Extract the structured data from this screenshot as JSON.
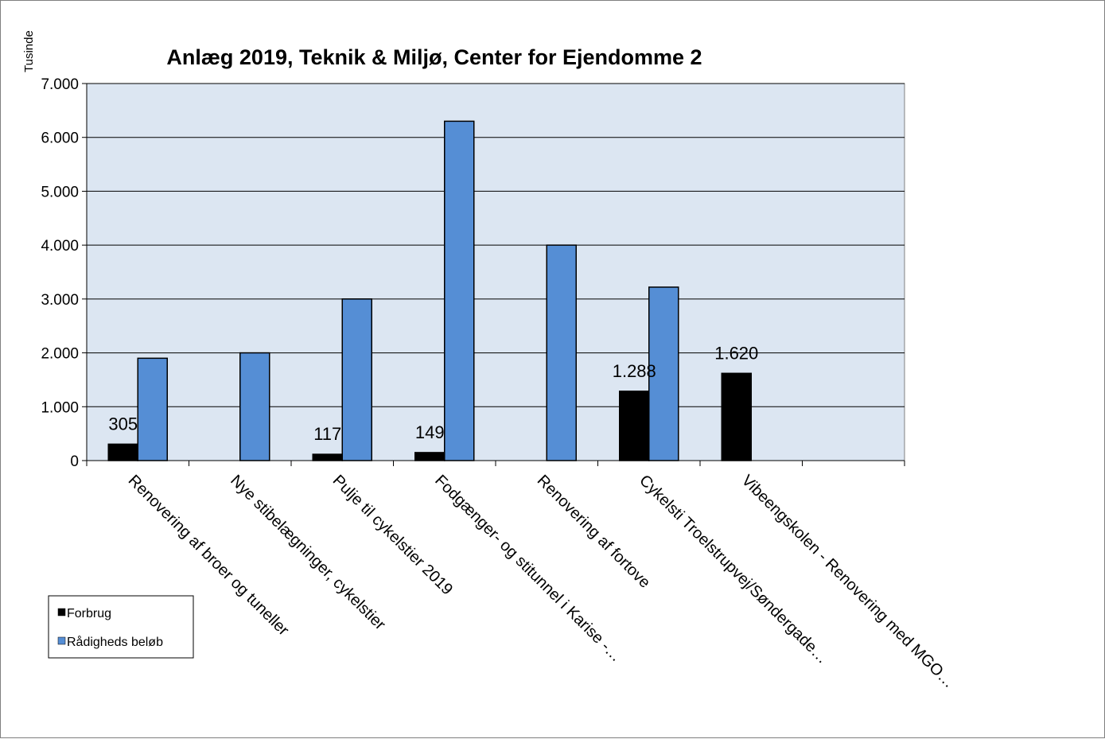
{
  "chart_data": {
    "type": "bar",
    "title": "Anlæg 2019, Teknik & Miljø, Center for Ejendomme 2",
    "ylabel": "Tusinde",
    "xlabel": "",
    "ylim": [
      0,
      7000
    ],
    "yticks": [
      0,
      1000,
      2000,
      3000,
      4000,
      5000,
      6000,
      7000
    ],
    "ytick_labels": [
      "0",
      "1.000",
      "2.000",
      "3.000",
      "4.000",
      "5.000",
      "6.000",
      "7.000"
    ],
    "grid": true,
    "legend_position": "bottom-left",
    "plot_background": "#dce6f2",
    "categories": [
      "Renovering af broer og tuneller",
      "Nye stibelægninger, cykelstier",
      "Pulje til cykelstier 2019",
      "Fodgænger- og stitunnel i Karise -…",
      "Renovering af fortove",
      "Cykelsti Troelstrupvej/Søndergade…",
      "Vibeengskolen - Renovering med MGO…",
      ""
    ],
    "series": [
      {
        "name": "Forbrug",
        "color": "#000000",
        "values": [
          305,
          null,
          117,
          149,
          null,
          1288,
          1620,
          null
        ],
        "data_labels": [
          "305",
          "",
          "117",
          "149",
          "",
          "1.288",
          "1.620",
          ""
        ]
      },
      {
        "name": "Rådigheds beløb",
        "color": "#558ed5",
        "values": [
          1900,
          2000,
          3000,
          6300,
          4000,
          3220,
          null,
          null
        ]
      }
    ]
  }
}
